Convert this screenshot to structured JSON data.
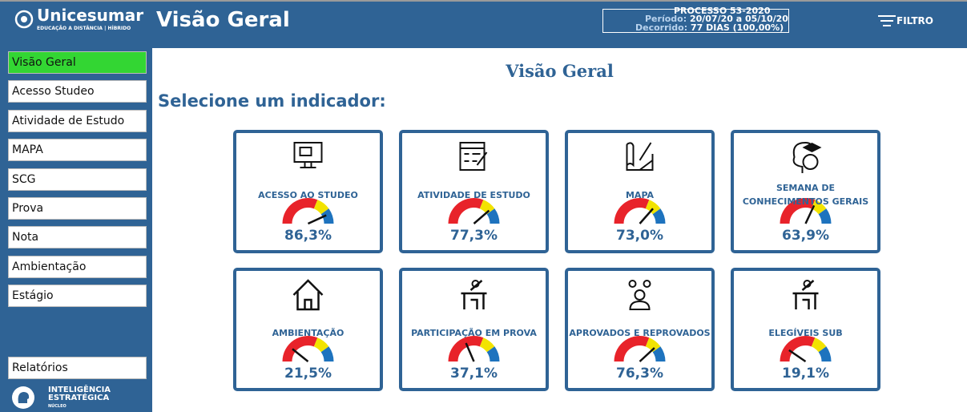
{
  "header": {
    "logo_name": "Unicesumar",
    "logo_tagline": "EDUCAÇÃO A DISTÂNCIA | HÍBRIDO",
    "title": "Visão Geral",
    "process": "PROCESSO 53-2020",
    "period_label": "Período:",
    "period_value": "20/07/20 a 05/10/20",
    "elapsed_label": "Decorrido:",
    "elapsed_value": "77 DIAS (100,00%)",
    "filter": "FILTRO"
  },
  "sidebar": {
    "items": [
      "Visão Geral",
      "Acesso Studeo",
      "Atividade de Estudo",
      "MAPA",
      "SCG",
      "Prova",
      "Nota",
      "Ambientação",
      "Estágio"
    ],
    "active": 0,
    "footer": "Relatórios",
    "brand": [
      "INTELIGÊNCIA",
      "ESTRATÉGICA",
      "NÚCLEO"
    ]
  },
  "main": {
    "title": "Visão Geral",
    "subtitle": "Selecione um indicador:"
  },
  "gauge_range": [
    0,
    100
  ],
  "cards": [
    {
      "label": "ACESSO AO STUDEO",
      "value": 86.3,
      "value_label": "86,3%"
    },
    {
      "label": "ATIVIDADE DE ESTUDO",
      "value": 77.3,
      "value_label": "77,3%"
    },
    {
      "label": "MAPA",
      "value": 73.0,
      "value_label": "73,0%"
    },
    {
      "label": "SEMANA DE\nCONHECIMENTOS GERAIS",
      "value": 63.9,
      "value_label": "63,9%"
    },
    {
      "label": "AMBIENTAÇÃO",
      "value": 21.5,
      "value_label": "21,5%"
    },
    {
      "label": "PARTICIPAÇÃO EM PROVA",
      "value": 37.1,
      "value_label": "37,1%"
    },
    {
      "label": "APROVADOS E REPROVADOS",
      "value": 76.3,
      "value_label": "76,3%"
    },
    {
      "label": "ELEGÍVEIS SUB",
      "value": 19.1,
      "value_label": "19,1%"
    }
  ]
}
